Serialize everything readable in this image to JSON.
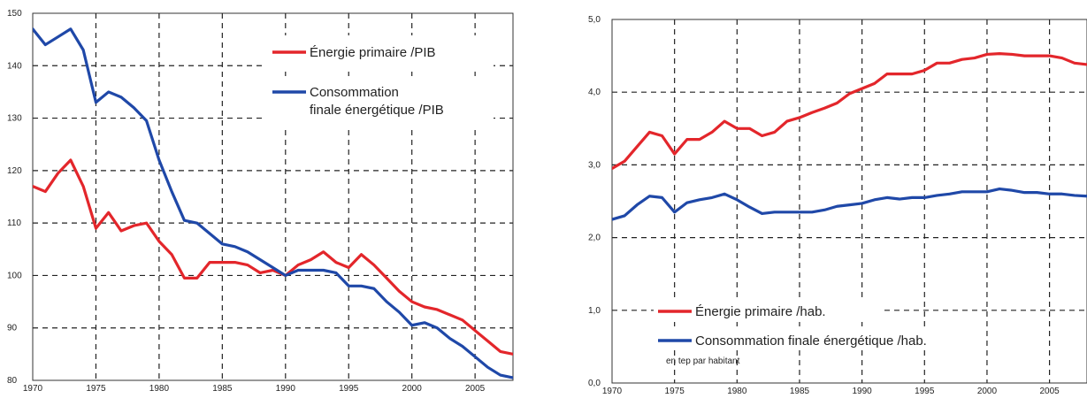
{
  "chart_data": [
    {
      "type": "line",
      "x": [
        1970,
        1971,
        1972,
        1973,
        1974,
        1975,
        1976,
        1977,
        1978,
        1979,
        1980,
        1981,
        1982,
        1983,
        1984,
        1985,
        1986,
        1987,
        1988,
        1989,
        1990,
        1991,
        1992,
        1993,
        1994,
        1995,
        1996,
        1997,
        1998,
        1999,
        2000,
        2001,
        2002,
        2003,
        2004,
        2005,
        2006,
        2007,
        2008
      ],
      "xticks": [
        1970,
        1975,
        1980,
        1985,
        1990,
        1995,
        2000,
        2005
      ],
      "ylim": [
        80,
        150
      ],
      "yticks": [
        80,
        90,
        100,
        110,
        120,
        130,
        140,
        150
      ],
      "grid": true,
      "legend_position": "top-right",
      "series": [
        {
          "name": "Énergie primaire /PIB",
          "color": "#e3262b",
          "values": [
            117,
            116,
            119.5,
            122,
            117,
            109,
            112,
            108.5,
            109.5,
            110,
            106.5,
            104,
            99.5,
            99.5,
            102.5,
            102.5,
            102.5,
            102,
            100.5,
            101,
            100,
            102,
            103,
            104.5,
            102.5,
            101.5,
            104,
            102,
            99.5,
            97,
            95,
            94,
            93.5,
            92.5,
            91.5,
            89.5,
            87.5,
            85.5,
            85
          ]
        },
        {
          "name": "Consommation finale énergétique /PIB",
          "color": "#1f48a8",
          "values": [
            147,
            144,
            145.5,
            147,
            143,
            133,
            135,
            134,
            132,
            129.5,
            122,
            116,
            110.5,
            110,
            108,
            106,
            105.5,
            104.5,
            103,
            101.5,
            100,
            101,
            101,
            101,
            100.5,
            98,
            98,
            97.5,
            95,
            93,
            90.5,
            91,
            90,
            88,
            86.5,
            84.5,
            82.5,
            81,
            80.5
          ]
        }
      ]
    },
    {
      "type": "line",
      "x": [
        1970,
        1971,
        1972,
        1973,
        1974,
        1975,
        1976,
        1977,
        1978,
        1979,
        1980,
        1981,
        1982,
        1983,
        1984,
        1985,
        1986,
        1987,
        1988,
        1989,
        1990,
        1991,
        1992,
        1993,
        1994,
        1995,
        1996,
        1997,
        1998,
        1999,
        2000,
        2001,
        2002,
        2003,
        2004,
        2005,
        2006,
        2007,
        2008
      ],
      "xticks": [
        1970,
        1975,
        1980,
        1985,
        1990,
        1995,
        2000,
        2005
      ],
      "ylim": [
        0,
        5
      ],
      "ytick_labels": [
        "0,0",
        "1,0",
        "2,0",
        "3,0",
        "4,0",
        "5,0"
      ],
      "grid": true,
      "legend_position": "bottom-left",
      "note": "en tep par habitant",
      "series": [
        {
          "name": "Énergie primaire /hab.",
          "color": "#e3262b",
          "values": [
            2.95,
            3.05,
            3.25,
            3.45,
            3.4,
            3.15,
            3.35,
            3.35,
            3.45,
            3.6,
            3.5,
            3.5,
            3.4,
            3.45,
            3.6,
            3.65,
            3.72,
            3.78,
            3.85,
            3.98,
            4.05,
            4.12,
            4.25,
            4.25,
            4.25,
            4.3,
            4.4,
            4.4,
            4.45,
            4.47,
            4.52,
            4.53,
            4.52,
            4.5,
            4.5,
            4.5,
            4.47,
            4.4,
            4.38
          ]
        },
        {
          "name": "Consommation finale énergétique /hab.",
          "color": "#1f48a8",
          "values": [
            2.25,
            2.3,
            2.45,
            2.57,
            2.55,
            2.35,
            2.48,
            2.52,
            2.55,
            2.6,
            2.52,
            2.42,
            2.33,
            2.35,
            2.35,
            2.35,
            2.35,
            2.38,
            2.43,
            2.45,
            2.47,
            2.52,
            2.55,
            2.53,
            2.55,
            2.55,
            2.58,
            2.6,
            2.63,
            2.63,
            2.63,
            2.67,
            2.65,
            2.62,
            2.62,
            2.6,
            2.6,
            2.58,
            2.57
          ]
        }
      ]
    }
  ]
}
